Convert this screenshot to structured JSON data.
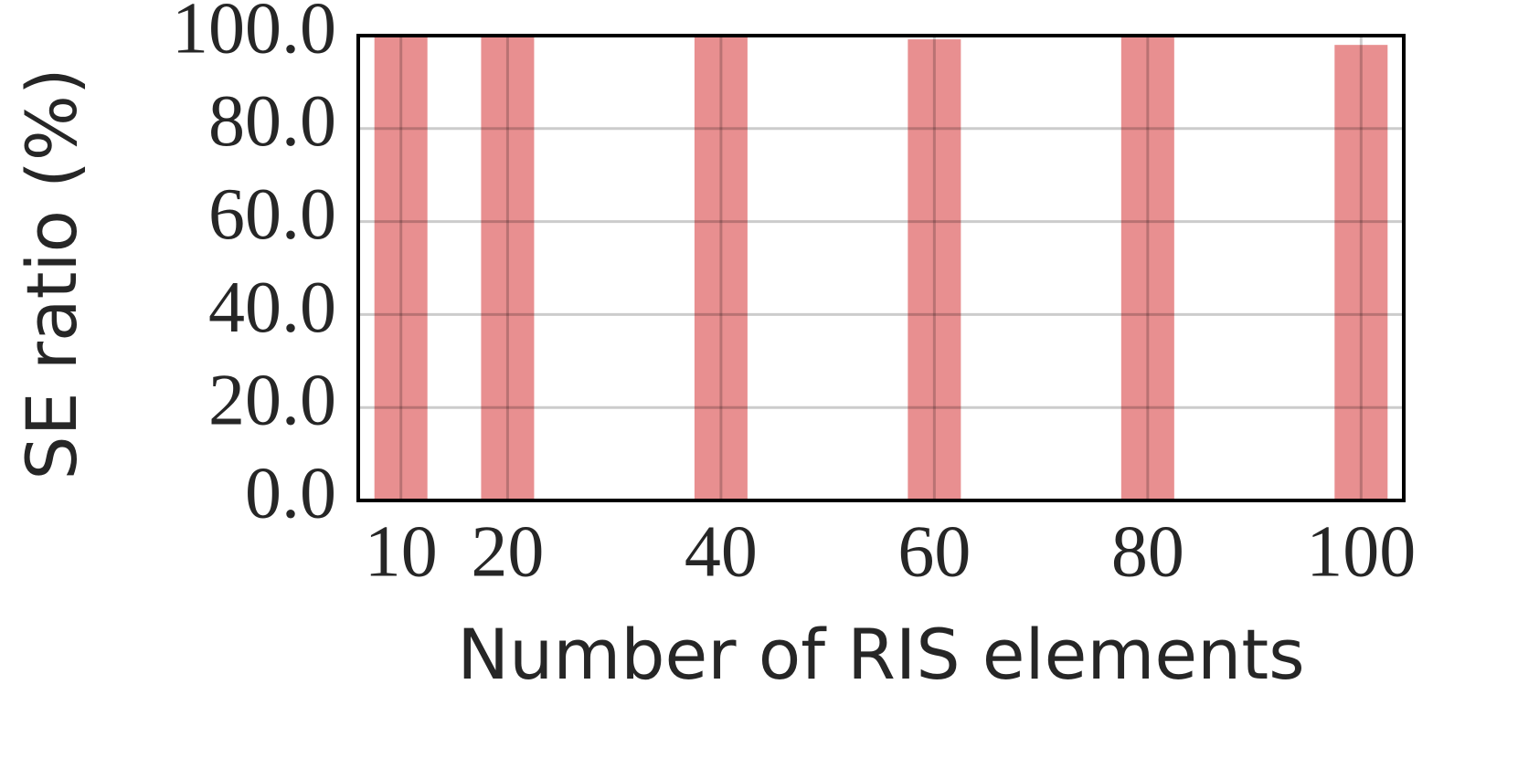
{
  "chart_data": {
    "type": "bar",
    "x_label": "Number of RIS elements",
    "y_label": "SE ratio (%)",
    "x": [
      10,
      20,
      40,
      60,
      80,
      100
    ],
    "values": [
      100.0,
      100.0,
      100.0,
      99.2,
      99.6,
      98.0
    ],
    "color": "#e88f90",
    "xlim": [
      6,
      104
    ],
    "xticks": [
      10,
      20,
      40,
      60,
      80,
      100
    ],
    "ylim": [
      0,
      100
    ],
    "yticks": [
      {
        "value": 0,
        "label": "0.0"
      },
      {
        "value": 20,
        "label": "20.0"
      },
      {
        "value": 40,
        "label": "40.0"
      },
      {
        "value": 60,
        "label": "60.0"
      },
      {
        "value": 80,
        "label": "80.0"
      },
      {
        "value": 100,
        "label": "100.0"
      }
    ],
    "grid": true
  }
}
